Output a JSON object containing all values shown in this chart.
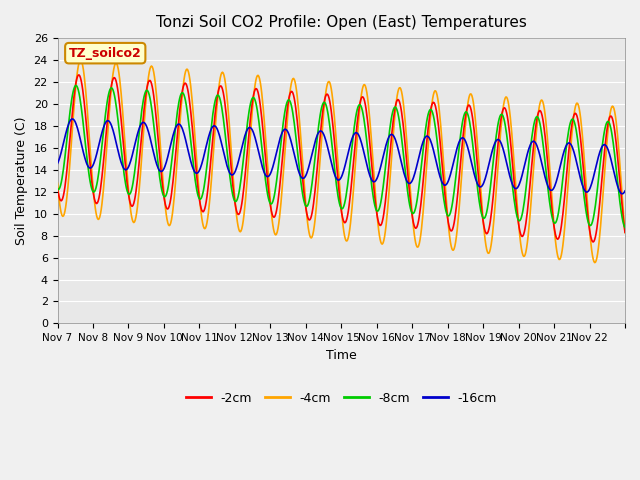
{
  "title": "Tonzi Soil CO2 Profile: Open (East) Temperatures",
  "xlabel": "Time",
  "ylabel": "Soil Temperature (C)",
  "ylim": [
    0,
    26
  ],
  "fig_facecolor": "#f0f0f0",
  "plot_bg_color": "#e8e8e8",
  "grid_color": "#ffffff",
  "label_box_text": "TZ_soilco2",
  "label_box_facecolor": "#ffffcc",
  "label_box_edgecolor": "#cc8800",
  "label_box_textcolor": "#cc0000",
  "lines": {
    "-2cm": {
      "color": "#ff0000",
      "lw": 1.2
    },
    "-4cm": {
      "color": "#ffa500",
      "lw": 1.2
    },
    "-8cm": {
      "color": "#00cc00",
      "lw": 1.2
    },
    "-16cm": {
      "color": "#0000cc",
      "lw": 1.2
    }
  },
  "xtick_labels": [
    "Nov 7",
    "Nov 8",
    "Nov 9",
    "Nov 10",
    "Nov 11",
    "Nov 12",
    "Nov 13",
    "Nov 14",
    "Nov 15",
    "Nov 16",
    "Nov 17",
    "Nov 18",
    "Nov 19",
    "Nov 20",
    "Nov 21",
    "Nov 22",
    ""
  ],
  "ytick_values": [
    0,
    2,
    4,
    6,
    8,
    10,
    12,
    14,
    16,
    18,
    20,
    22,
    24,
    26
  ],
  "n_days": 16,
  "periods_per_day": 48
}
